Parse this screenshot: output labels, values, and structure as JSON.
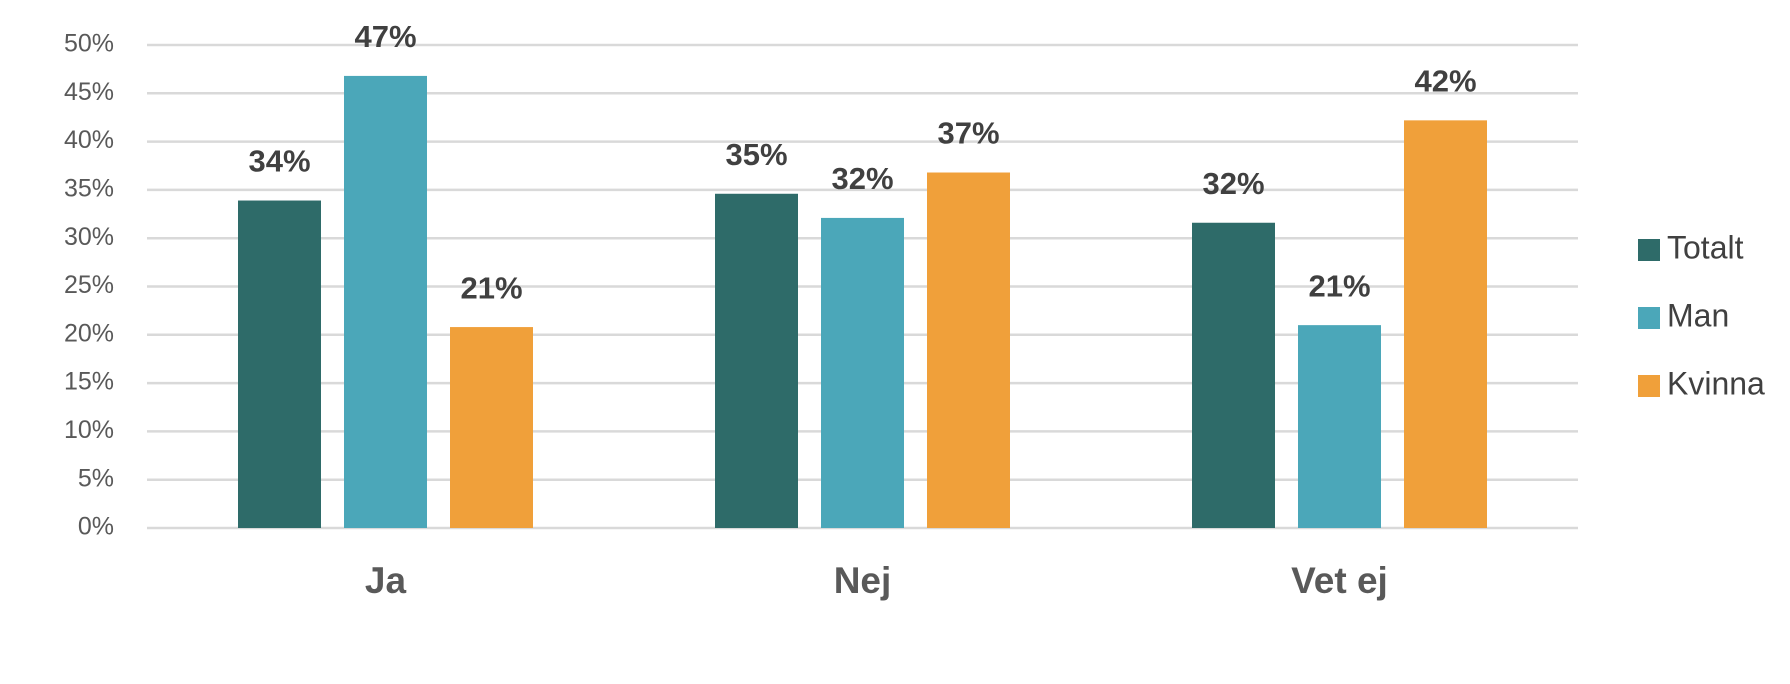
{
  "chart_data": {
    "type": "bar",
    "categories": [
      "Ja",
      "Nej",
      "Vet ej"
    ],
    "series": [
      {
        "name": "Totalt",
        "color": "#2e6b69",
        "values": [
          33.9,
          34.6,
          31.6
        ],
        "value_labels": [
          "34%",
          "35%",
          "32%"
        ]
      },
      {
        "name": "Man",
        "color": "#4ba7b9",
        "values": [
          46.8,
          32.1,
          21.0
        ],
        "value_labels": [
          "47%",
          "32%",
          "21%"
        ]
      },
      {
        "name": "Kvinna",
        "color": "#f0a03a",
        "values": [
          20.8,
          36.8,
          42.2
        ],
        "value_labels": [
          "21%",
          "37%",
          "42%"
        ]
      }
    ],
    "ylim": [
      0,
      50
    ],
    "yticks": [
      {
        "value": 0,
        "label": "0%"
      },
      {
        "value": 5,
        "label": "5%"
      },
      {
        "value": 10,
        "label": "10%"
      },
      {
        "value": 15,
        "label": "15%"
      },
      {
        "value": 20,
        "label": "20%"
      },
      {
        "value": 25,
        "label": "25%"
      },
      {
        "value": 30,
        "label": "30%"
      },
      {
        "value": 35,
        "label": "35%"
      },
      {
        "value": 40,
        "label": "40%"
      },
      {
        "value": 45,
        "label": "45%"
      },
      {
        "value": 50,
        "label": "50%"
      }
    ],
    "grid": true,
    "legend": "right"
  }
}
